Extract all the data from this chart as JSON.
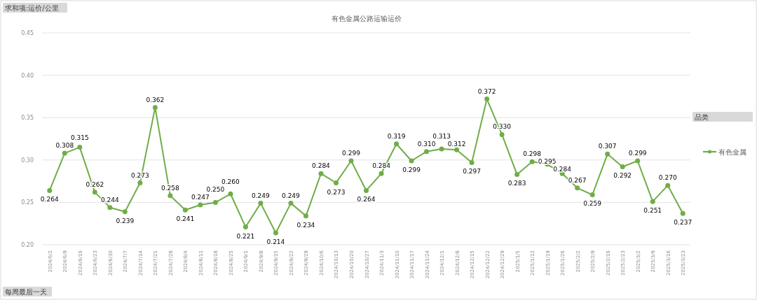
{
  "chart_data": {
    "type": "line",
    "title": "有色金属公路运输运价",
    "categories": [
      "2024/6/2",
      "2024/6/9",
      "2024/6/16",
      "2024/6/23",
      "2024/6/30",
      "2024/7/7",
      "2024/7/14",
      "2024/7/21",
      "2024/7/28",
      "2024/8/4",
      "2024/8/11",
      "2024/8/18",
      "2024/8/25",
      "2024/9/1",
      "2024/9/8",
      "2024/9/15",
      "2024/9/22",
      "2024/9/29",
      "2024/10/6",
      "2024/10/13",
      "2024/10/20",
      "2024/10/27",
      "2024/11/3",
      "2024/11/10",
      "2024/11/17",
      "2024/11/24",
      "2024/12/1",
      "2024/12/8",
      "2024/12/15",
      "2024/12/22",
      "2024/12/29",
      "2025/1/5",
      "2025/1/12",
      "2025/1/19",
      "2025/1/26",
      "2025/2/2",
      "2025/2/9",
      "2025/2/16",
      "2025/2/23",
      "2025/3/2",
      "2025/3/9",
      "2025/3/16",
      "2025/3/23"
    ],
    "series": [
      {
        "name": "有色金属",
        "color": "#70ad47",
        "values": [
          0.264,
          0.308,
          0.315,
          0.262,
          0.244,
          0.239,
          0.273,
          0.362,
          0.258,
          0.241,
          0.247,
          0.25,
          0.26,
          0.221,
          0.249,
          0.214,
          0.249,
          0.234,
          0.284,
          0.273,
          0.299,
          0.264,
          0.284,
          0.319,
          0.299,
          0.31,
          0.313,
          0.312,
          0.297,
          0.372,
          0.33,
          0.283,
          0.298,
          0.295,
          0.284,
          0.267,
          0.259,
          0.307,
          0.292,
          0.299,
          0.251,
          0.27,
          0.237
        ],
        "value_labels": [
          "0.264",
          "0.308",
          "0.315",
          "0.262",
          "0.244",
          "0.239",
          "0.273",
          "0.362",
          "0.258",
          "0.241",
          "0.247",
          "0.250",
          "0.260",
          "0.221",
          "0.249",
          "0.214",
          "0.249",
          "0.234",
          "0.284",
          "0.273",
          "0.299",
          "0.264",
          "0.284",
          "0.319",
          "0.299",
          "0.310",
          "0.313",
          "0.312",
          "0.297",
          "0.372",
          "0.330",
          "0.283",
          "0.298",
          "0.295",
          "0.284",
          "0.267",
          "0.259",
          "0.307",
          "0.292",
          "0.299",
          "0.251",
          "0.270",
          "0.237"
        ]
      }
    ],
    "ylim": [
      0.2,
      0.45
    ],
    "yticks": [
      {
        "value": 0.2,
        "label": "0.20"
      },
      {
        "value": 0.25,
        "label": "0.25"
      },
      {
        "value": 0.3,
        "label": "0.30"
      },
      {
        "value": 0.35,
        "label": "0.35"
      },
      {
        "value": 0.4,
        "label": "0.40"
      },
      {
        "value": 0.45,
        "label": "0.45"
      }
    ],
    "grid": "y",
    "legend": "right",
    "marker": "circle",
    "line_style": "solid",
    "annotations": [
      "求和项:运价/公里",
      "品类",
      "每周最后一天"
    ]
  }
}
